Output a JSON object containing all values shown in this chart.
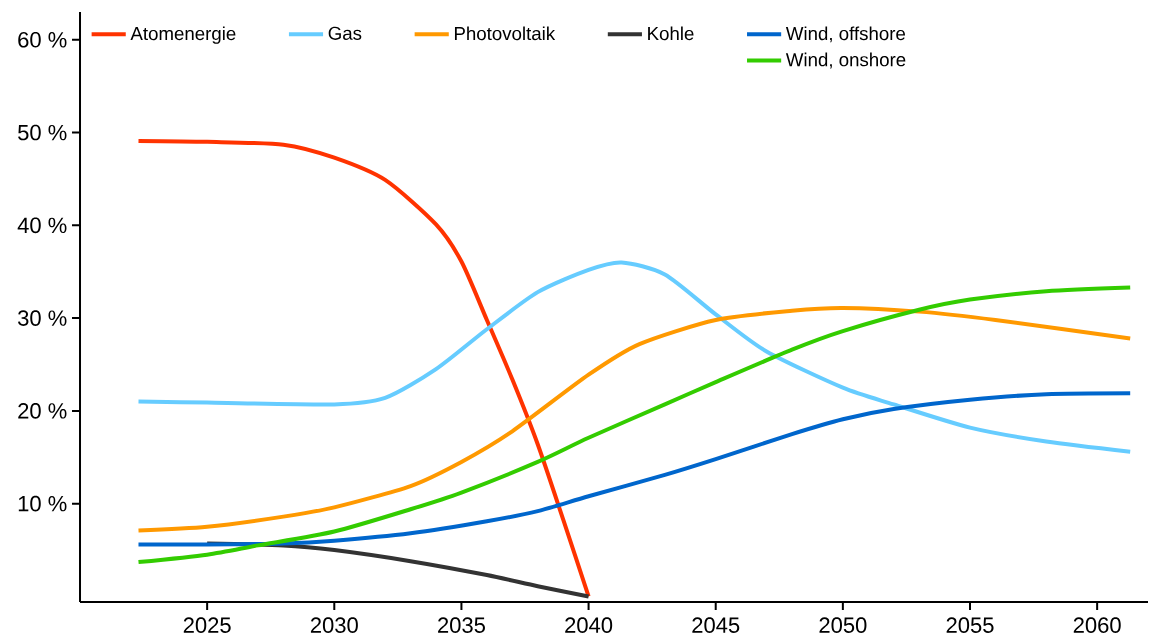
{
  "chart_data": {
    "type": "line",
    "xlim": [
      2020,
      2062
    ],
    "ylim": [
      -0.6,
      63
    ],
    "xticks": [
      2025,
      2030,
      2035,
      2040,
      2045,
      2050,
      2055,
      2060
    ],
    "yticks": [
      {
        "value": 10,
        "label": "10 %"
      },
      {
        "value": 20,
        "label": "20 %"
      },
      {
        "value": 30,
        "label": "30 %"
      },
      {
        "value": 40,
        "label": "40 %"
      },
      {
        "value": 50,
        "label": "50 %"
      },
      {
        "value": 60,
        "label": "60 %"
      }
    ],
    "legend": "top",
    "series": [
      {
        "name": "Atomenergie",
        "color": "#ff3300",
        "x": [
          2022.3,
          2025,
          2028,
          2030,
          2032,
          2034,
          2035,
          2036,
          2037,
          2038,
          2039,
          2040
        ],
        "values": [
          49.1,
          49.0,
          48.7,
          47.3,
          44.9,
          40.1,
          36.1,
          29.8,
          23.4,
          16.4,
          8.3,
          0
        ]
      },
      {
        "name": "Gas",
        "color": "#66ccff",
        "x": [
          2022.3,
          2025,
          2030,
          2032,
          2034,
          2036,
          2038,
          2040,
          2041.3,
          2043,
          2045,
          2047,
          2050,
          2052,
          2055,
          2058,
          2061.3
        ],
        "values": [
          21.0,
          20.9,
          20.7,
          21.4,
          24.5,
          28.8,
          32.8,
          35.2,
          36.0,
          34.7,
          30.4,
          26.4,
          22.5,
          20.7,
          18.2,
          16.7,
          15.6
        ]
      },
      {
        "name": "Photovoltaik",
        "color": "#ff9900",
        "x": [
          2022.3,
          2025,
          2028,
          2030,
          2033,
          2035,
          2037,
          2040,
          2042,
          2045,
          2048,
          2050,
          2053,
          2056,
          2061.3
        ],
        "values": [
          7.1,
          7.5,
          8.6,
          9.6,
          11.9,
          14.5,
          17.8,
          23.9,
          27.2,
          29.8,
          30.8,
          31.1,
          30.7,
          29.8,
          27.8
        ]
      },
      {
        "name": "Kohle",
        "color": "#333333",
        "x": [
          2025,
          2028,
          2030,
          2033,
          2036,
          2038,
          2040
        ],
        "values": [
          5.7,
          5.5,
          5.0,
          3.8,
          2.3,
          1.1,
          0
        ]
      },
      {
        "name": "Wind, offshore",
        "color": "#0066cc",
        "x": [
          2022.3,
          2025,
          2028,
          2030,
          2033,
          2036,
          2038,
          2040,
          2043,
          2045,
          2048,
          2050,
          2052,
          2055,
          2058,
          2061.3
        ],
        "values": [
          5.6,
          5.6,
          5.7,
          6.0,
          6.8,
          8.1,
          9.2,
          10.8,
          13.1,
          14.8,
          17.5,
          19.1,
          20.2,
          21.2,
          21.8,
          21.9
        ]
      },
      {
        "name": "Wind, onshore",
        "color": "#33cc00",
        "x": [
          2022.3,
          2025,
          2027,
          2030,
          2033,
          2035,
          2038,
          2040,
          2043,
          2045,
          2048,
          2050,
          2053,
          2055,
          2058,
          2061.3
        ],
        "values": [
          3.7,
          4.5,
          5.5,
          7.0,
          9.4,
          11.2,
          14.5,
          17.1,
          20.7,
          23.1,
          26.6,
          28.6,
          30.9,
          32.0,
          32.9,
          33.3
        ]
      }
    ]
  }
}
